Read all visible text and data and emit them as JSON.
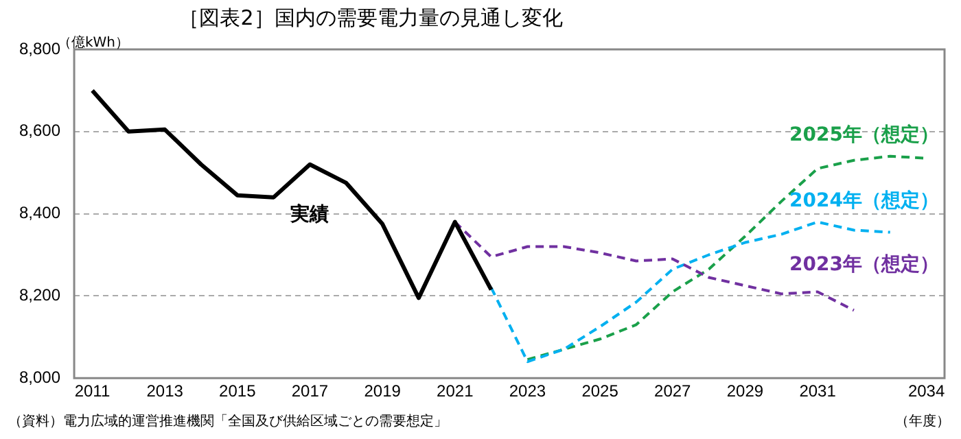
{
  "chart_data": {
    "type": "line",
    "title": "［図表2］国内の需要電力量の見通し変化",
    "ylabel": "（億kWh）",
    "xlabel": "（年度）",
    "annotations": [
      "（資料）電力広域的運営推進機関「全国及び供給区域ごとの需要想定」"
    ],
    "xlim": [
      2010.5,
      2034.5
    ],
    "xticks": [
      2011,
      2013,
      2015,
      2017,
      2019,
      2021,
      2023,
      2025,
      2027,
      2029,
      2031,
      2034
    ],
    "ylim": [
      8000,
      8800
    ],
    "yticks": [
      {
        "value": 8000,
        "label": "8,000"
      },
      {
        "value": 8200,
        "label": "8,200"
      },
      {
        "value": 8400,
        "label": "8,400"
      },
      {
        "value": 8600,
        "label": "8,600"
      },
      {
        "value": 8800,
        "label": "8,800"
      }
    ],
    "grid": "y",
    "legend": false,
    "marker": "none",
    "series": [
      {
        "name": "実績",
        "color": "#000000",
        "line_style": "solid",
        "x": [
          2011,
          2012,
          2013,
          2014,
          2015,
          2016,
          2017,
          2018,
          2019,
          2020,
          2021,
          2022
        ],
        "values": [
          8700,
          8600,
          8605,
          8520,
          8445,
          8440,
          8520,
          8475,
          8375,
          8195,
          8380,
          8215
        ]
      },
      {
        "name": "2023年（想定）",
        "color": "#7030a0",
        "line_style": "dashed",
        "x": [
          2021,
          2022,
          2023,
          2024,
          2025,
          2026,
          2027,
          2028,
          2029,
          2030,
          2031,
          2032
        ],
        "values": [
          8380,
          8295,
          8320,
          8320,
          8305,
          8285,
          8290,
          8245,
          8225,
          8205,
          8210,
          8165
        ]
      },
      {
        "name": "2024年（想定）",
        "color": "#00b0f0",
        "line_style": "dashed",
        "x": [
          2022,
          2023,
          2024,
          2025,
          2026,
          2027,
          2028,
          2029,
          2030,
          2031,
          2032,
          2033
        ],
        "values": [
          8220,
          8040,
          8070,
          8125,
          8185,
          8265,
          8300,
          8330,
          8350,
          8380,
          8360,
          8355
        ]
      },
      {
        "name": "2025年（想定）",
        "color": "#1aa04a",
        "line_style": "dashed",
        "x": [
          2023,
          2024,
          2025,
          2026,
          2027,
          2028,
          2029,
          2030,
          2031,
          2032,
          2033,
          2034
        ],
        "values": [
          8045,
          8070,
          8095,
          8130,
          8210,
          8265,
          8345,
          8430,
          8510,
          8530,
          8540,
          8535
        ]
      }
    ]
  }
}
